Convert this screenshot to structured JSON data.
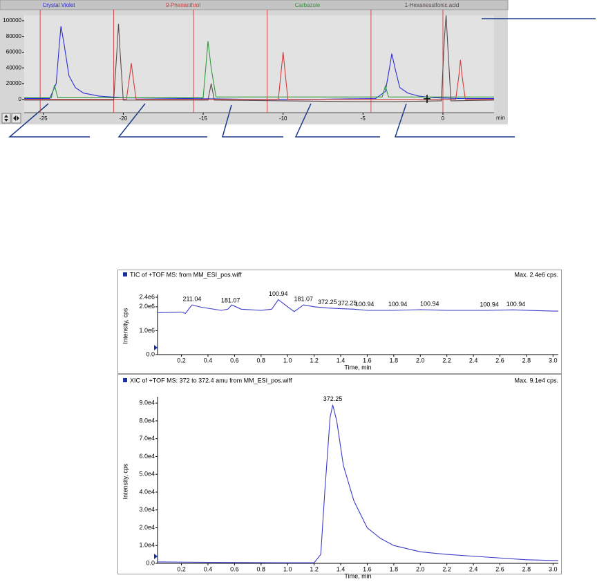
{
  "chart_data": [
    {
      "type": "line",
      "x_label": "min",
      "xlim": [
        -26.2,
        3.2
      ],
      "ylim": [
        -17000,
        107000
      ],
      "xticks": [
        -25,
        -20,
        -15,
        -10,
        -5,
        0
      ],
      "yticks": [
        0,
        20000,
        40000,
        60000,
        80000,
        100000
      ],
      "event_lines": {
        "color": "#d04a4a",
        "x": [
          -25.2,
          -20.6,
          -15.6,
          -11.0,
          -4.5,
          0
        ]
      },
      "series": [
        {
          "name": "Crystal Violet",
          "color": "#2b2bd6",
          "x": [
            -26.2,
            -24.6,
            -24.2,
            -24.0,
            -23.9,
            -23.7,
            -23.4,
            -23.0,
            -22.5,
            -21.5,
            -20.0,
            -16,
            -12,
            -8,
            -4.2,
            -3.6,
            -3.3,
            -3.2,
            -3.0,
            -2.7,
            -2.2,
            -1.5,
            -0.5,
            1,
            3.2
          ],
          "values": [
            1000,
            1000,
            20000,
            70000,
            93000,
            70000,
            30000,
            15000,
            8000,
            4000,
            2000,
            1000,
            0,
            0,
            1000,
            10000,
            45000,
            58000,
            40000,
            15000,
            8000,
            4000,
            2000,
            1000,
            1000
          ]
        },
        {
          "name": "9-Phenanthrol",
          "color": "#d43a3a",
          "x": [
            -26.2,
            -19.8,
            -19.6,
            -19.5,
            -19.4,
            -19.2,
            -10.3,
            -10.1,
            -10.0,
            -9.9,
            -9.7,
            0.8,
            1.0,
            1.1,
            1.2,
            1.4,
            3.2
          ],
          "values": [
            0,
            0,
            30000,
            46000,
            30000,
            0,
            0,
            40000,
            60000,
            40000,
            0,
            0,
            30000,
            50000,
            30000,
            0,
            0
          ]
        },
        {
          "name": "Carbazole",
          "color": "#2f9a3a",
          "x": [
            -26.2,
            -24.5,
            -24.3,
            -24.1,
            -15.0,
            -14.8,
            -14.7,
            -14.5,
            -14.2,
            -3.8,
            -3.6,
            -3.4,
            3.2
          ],
          "values": [
            2000,
            2000,
            18000,
            2000,
            2000,
            50000,
            74000,
            40000,
            3000,
            3000,
            17000,
            3000,
            3000
          ]
        },
        {
          "name": "1-Hexanesulfonic acid",
          "color": "#5a4a4a",
          "x": [
            -26.2,
            -20.6,
            -20.4,
            -20.3,
            -20.2,
            -20.0,
            -14.7,
            -14.5,
            -14.3,
            -5.0,
            -3.0,
            -0.1,
            0.1,
            0.2,
            0.3,
            0.5,
            3.2
          ],
          "values": [
            -1000,
            -1000,
            60000,
            96000,
            60000,
            -1000,
            -1000,
            20000,
            -1000,
            -3000,
            -3000,
            -2000,
            80000,
            107000,
            70000,
            -2000,
            -1000
          ]
        }
      ]
    },
    {
      "type": "line",
      "title": "TIC of +TOF MS: from MM_ESI_pos.wiff",
      "subtitle": "Max. 2.4e6 cps.",
      "x_label": "Time, min",
      "y_label": "Intensity, cps",
      "xlim": [
        0.02,
        3.04
      ],
      "ylim": [
        0,
        2400000
      ],
      "xticks": [
        0.2,
        0.4,
        0.6,
        0.8,
        {
          "value": 1.0,
          "label": "1.0"
        },
        1.2,
        1.4,
        1.6,
        1.8,
        {
          "value": 2.0,
          "label": "2.0"
        },
        2.2,
        2.4,
        2.6,
        2.8,
        {
          "value": 3.0,
          "label": "3.0"
        }
      ],
      "yticks": [
        {
          "value": 0,
          "label": "0.0"
        },
        {
          "value": 1000000,
          "label": "1.0e6"
        },
        {
          "value": 2000000,
          "label": "2.0e6"
        },
        {
          "value": 2400000,
          "label": "2.4e6"
        }
      ],
      "series": [
        {
          "color": "#3a3ac8",
          "x": [
            0.02,
            0.2,
            0.23,
            0.28,
            0.35,
            0.5,
            0.55,
            0.58,
            0.65,
            0.8,
            0.88,
            0.93,
            1.0,
            1.05,
            1.12,
            1.2,
            1.3,
            1.4,
            1.5,
            1.6,
            1.8,
            2.0,
            2.2,
            2.5,
            2.7,
            3.0,
            3.04
          ],
          "values": [
            1750000,
            1780000,
            1720000,
            2080000,
            1980000,
            1850000,
            1900000,
            2080000,
            1900000,
            1850000,
            1900000,
            2300000,
            2000000,
            1800000,
            2080000,
            2000000,
            1950000,
            1920000,
            1900000,
            1850000,
            1850000,
            1880000,
            1850000,
            1850000,
            1870000,
            1820000,
            1820000
          ]
        }
      ],
      "annotations": [
        {
          "label": "211.04",
          "x": 0.28
        },
        {
          "label": "181.07",
          "x": 0.57
        },
        {
          "label": "100.94",
          "x": 0.93
        },
        {
          "label": "181.07",
          "x": 1.12
        },
        {
          "label": "372.25",
          "x": 1.3
        },
        {
          "label": "372.25",
          "x": 1.45
        },
        {
          "label": "100.94",
          "x": 1.58
        },
        {
          "label": "100.94",
          "x": 1.83
        },
        {
          "label": "100.94",
          "x": 2.07
        },
        {
          "label": "100.94",
          "x": 2.52
        },
        {
          "label": "100.94",
          "x": 2.72
        }
      ]
    },
    {
      "type": "line",
      "title": "XIC of +TOF MS: 372 to 372.4 amu from MM_ESI_pos.wiff",
      "subtitle": "Max. 9.1e4 cps.",
      "x_label": "Time, min",
      "y_label": "Intensity, cps",
      "xlim": [
        0.02,
        3.04
      ],
      "ylim": [
        0,
        92000
      ],
      "xticks": [
        0.2,
        0.4,
        0.6,
        0.8,
        {
          "value": 1.0,
          "label": "1.0"
        },
        1.2,
        1.4,
        1.6,
        1.8,
        {
          "value": 2.0,
          "label": "2.0"
        },
        2.2,
        2.4,
        2.6,
        2.8,
        {
          "value": 3.0,
          "label": "3.0"
        }
      ],
      "yticks": [
        {
          "value": 0,
          "label": "0.0"
        },
        {
          "value": 10000,
          "label": "1.0e4"
        },
        {
          "value": 20000,
          "label": "2.0e4"
        },
        {
          "value": 30000,
          "label": "3.0e4"
        },
        {
          "value": 40000,
          "label": "4.0e4"
        },
        {
          "value": 50000,
          "label": "5.0e4"
        },
        {
          "value": 60000,
          "label": "6.0e4"
        },
        {
          "value": 70000,
          "label": "7.0e4"
        },
        {
          "value": 80000,
          "label": "8.0e4"
        },
        {
          "value": 90000,
          "label": "9.0e4"
        }
      ],
      "series": [
        {
          "color": "#3a3ac8",
          "x": [
            0.02,
            0.5,
            1.0,
            1.2,
            1.25,
            1.28,
            1.32,
            1.34,
            1.37,
            1.42,
            1.5,
            1.6,
            1.7,
            1.8,
            2.0,
            2.2,
            2.5,
            2.8,
            3.04
          ],
          "values": [
            800,
            500,
            300,
            300,
            5000,
            40000,
            82000,
            89000,
            80000,
            55000,
            35000,
            20000,
            14000,
            10000,
            6500,
            5000,
            3500,
            2000,
            1500
          ]
        }
      ],
      "annotations": [
        {
          "label": "372.25",
          "x": 1.34
        }
      ]
    }
  ]
}
